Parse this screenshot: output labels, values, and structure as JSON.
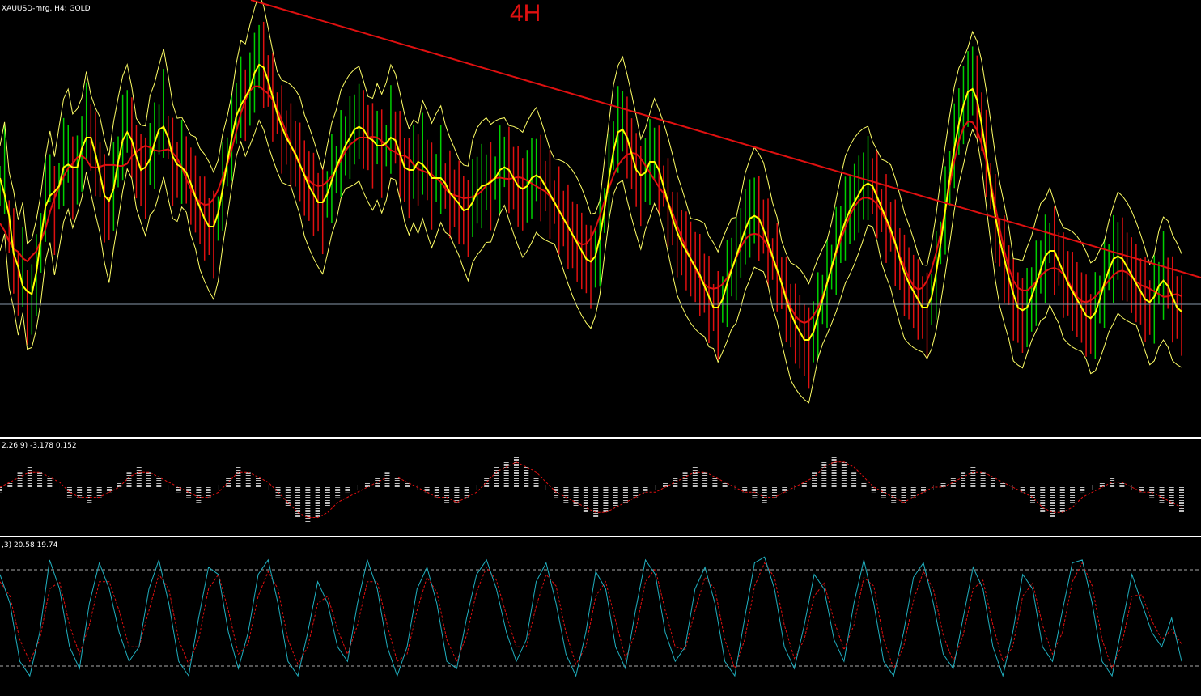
{
  "window": {
    "symbol_label": "XAUUSD-mrg, H4:  GOLD",
    "timeframe_annotation": "4H"
  },
  "macd_panel": {
    "label": "2,26,9) -3.178 0.152"
  },
  "stoch_panel": {
    "label": ",3) 20.58 19.74"
  },
  "colors": {
    "background": "#000000",
    "bull_candle": "#00d000",
    "bear_candle": "#e01010",
    "fast_ma": "#ffff00",
    "slow_ma": "#e01010",
    "bands": "#ffff66",
    "trendline": "#e01010",
    "hline": "#8899aa",
    "macd_hist": "#c0c0c0",
    "macd_signal": "#e01010",
    "stoch_main": "#20b0c0",
    "stoch_signal": "#e01010",
    "separator": "#ffffff"
  },
  "chart_data": [
    {
      "type": "line",
      "panel": "price",
      "series": [
        {
          "values": [
            58,
            62,
            48,
            42,
            34,
            38,
            28,
            30,
            36,
            44,
            55,
            60,
            52,
            58,
            64,
            66,
            60,
            62,
            66,
            74,
            70,
            66,
            62,
            55,
            50,
            58,
            64,
            70,
            74,
            70,
            64,
            62,
            60,
            66,
            68,
            72,
            76,
            70,
            64,
            62,
            64,
            62,
            58,
            56,
            52,
            50,
            48,
            46,
            50,
            58,
            64,
            70,
            76,
            80,
            78,
            82,
            86,
            90,
            88,
            84,
            80,
            76,
            72,
            70,
            68,
            66,
            64,
            60,
            58,
            56,
            54,
            52,
            56,
            60,
            62,
            66,
            68,
            70,
            72,
            74,
            72,
            70,
            68,
            70,
            66,
            68,
            72,
            70,
            66,
            62,
            60,
            64,
            62,
            66,
            62,
            58,
            60,
            62,
            58,
            56,
            55,
            54,
            52,
            50,
            55,
            57,
            58,
            59,
            58,
            60,
            62,
            64,
            62,
            60,
            58,
            56,
            58,
            60,
            62,
            60,
            58,
            56,
            54,
            52,
            50,
            48,
            46,
            44,
            42,
            40,
            38,
            40,
            44,
            52,
            60,
            68,
            72,
            74,
            70,
            66,
            62,
            58,
            62,
            64,
            66,
            62,
            58,
            54,
            50,
            46,
            44,
            42,
            40,
            38,
            36,
            34,
            30,
            28,
            26,
            30,
            34,
            38,
            40,
            44,
            48,
            50,
            52,
            50,
            48,
            44,
            40,
            38,
            34,
            30,
            26,
            24,
            22,
            20,
            18,
            22,
            26,
            30,
            34,
            38,
            42,
            46,
            50,
            52,
            54,
            56,
            58,
            60,
            58,
            56,
            52,
            50,
            48,
            44,
            40,
            36,
            34,
            32,
            30,
            28,
            26,
            30,
            36,
            44,
            52,
            60,
            68,
            74,
            78,
            82,
            84,
            80,
            74,
            66,
            58,
            50,
            44,
            40,
            36,
            30,
            28,
            26,
            28,
            30,
            34,
            38,
            40,
            44,
            42,
            40,
            36,
            34,
            32,
            30,
            28,
            26,
            24,
            26,
            30,
            34,
            38,
            40,
            42,
            40,
            38,
            36,
            34,
            32,
            30,
            28,
            30,
            34,
            36,
            34,
            30,
            28,
            26
          ]
        }
      ],
      "ylim": [
        0,
        100
      ]
    },
    {
      "type": "bar",
      "panel": "macd",
      "series": [
        {
          "values": [
            -1,
            1,
            3,
            4,
            3,
            2,
            0,
            -2,
            -2,
            -3,
            -2,
            -1,
            1,
            3,
            4,
            3,
            2,
            0,
            -1,
            -2,
            -3,
            -2,
            0,
            2,
            4,
            3,
            2,
            0,
            -2,
            -4,
            -6,
            -7,
            -6,
            -4,
            -2,
            -1,
            0,
            1,
            2,
            3,
            2,
            1,
            0,
            -1,
            -2,
            -3,
            -3,
            -2,
            0,
            2,
            4,
            5,
            6,
            4,
            2,
            0,
            -2,
            -3,
            -4,
            -5,
            -6,
            -5,
            -4,
            -3,
            -2,
            -1,
            0,
            1,
            2,
            3,
            4,
            3,
            2,
            1,
            0,
            -1,
            -2,
            -3,
            -2,
            -1,
            0,
            1,
            3,
            5,
            6,
            5,
            3,
            1,
            -1,
            -2,
            -3,
            -3,
            -2,
            -1,
            0,
            1,
            2,
            3,
            4,
            3,
            2,
            1,
            0,
            -1,
            -3,
            -5,
            -6,
            -5,
            -3,
            -1,
            0,
            1,
            2,
            1,
            0,
            -1,
            -2,
            -3,
            -4,
            -5
          ]
        },
        {
          "values": [
            0,
            1,
            2,
            3,
            3,
            2,
            1,
            -1,
            -2,
            -2,
            -2,
            -1,
            0,
            2,
            3,
            3,
            2,
            1,
            0,
            -1,
            -2,
            -2,
            -1,
            1,
            3,
            3,
            2,
            1,
            -1,
            -3,
            -5,
            -6,
            -6,
            -5,
            -3,
            -2,
            -1,
            0,
            1,
            2,
            2,
            1,
            0,
            -1,
            -2,
            -2,
            -3,
            -2,
            -1,
            1,
            3,
            4,
            5,
            4,
            3,
            1,
            -1,
            -2,
            -3,
            -4,
            -5,
            -5,
            -4,
            -3,
            -2,
            -1,
            -1,
            0,
            1,
            2,
            3,
            3,
            2,
            1,
            0,
            -1,
            -1,
            -2,
            -2,
            -1,
            0,
            1,
            2,
            4,
            5,
            5,
            4,
            2,
            0,
            -1,
            -2,
            -3,
            -2,
            -1,
            0,
            0,
            1,
            2,
            3,
            3,
            2,
            1,
            0,
            -1,
            -2,
            -4,
            -5,
            -5,
            -4,
            -2,
            -1,
            0,
            1,
            1,
            0,
            -1,
            -1,
            -2,
            -3,
            -4
          ]
        }
      ],
      "ylim": [
        -8,
        8
      ]
    },
    {
      "type": "line",
      "panel": "stochastic",
      "series": [
        {
          "values": [
            80,
            60,
            20,
            10,
            40,
            90,
            70,
            30,
            15,
            60,
            88,
            70,
            40,
            20,
            30,
            70,
            90,
            60,
            20,
            10,
            50,
            85,
            80,
            40,
            15,
            40,
            80,
            90,
            60,
            20,
            10,
            40,
            75,
            60,
            30,
            20,
            60,
            90,
            70,
            30,
            10,
            30,
            70,
            85,
            60,
            20,
            15,
            50,
            80,
            90,
            70,
            40,
            20,
            35,
            75,
            88,
            60,
            25,
            10,
            40,
            82,
            70,
            30,
            15,
            55,
            90,
            80,
            40,
            20,
            30,
            70,
            85,
            60,
            20,
            10,
            50,
            88,
            92,
            70,
            30,
            15,
            45,
            80,
            70,
            35,
            20,
            60,
            90,
            60,
            20,
            10,
            40,
            78,
            88,
            60,
            25,
            15,
            50,
            85,
            70,
            30,
            10,
            40,
            80,
            70,
            30,
            20,
            55,
            88,
            90,
            60,
            20,
            10,
            45,
            80,
            60,
            40,
            30,
            50,
            20
          ]
        },
        {
          "values": [
            75,
            65,
            35,
            20,
            35,
            70,
            75,
            45,
            25,
            45,
            75,
            75,
            55,
            30,
            30,
            55,
            80,
            70,
            35,
            18,
            35,
            70,
            80,
            55,
            25,
            32,
            65,
            82,
            70,
            35,
            18,
            30,
            60,
            65,
            42,
            25,
            45,
            75,
            75,
            45,
            20,
            25,
            55,
            78,
            68,
            35,
            20,
            38,
            68,
            85,
            76,
            52,
            30,
            30,
            58,
            80,
            72,
            40,
            18,
            30,
            65,
            75,
            48,
            22,
            40,
            75,
            84,
            55,
            30,
            28,
            55,
            78,
            70,
            35,
            15,
            35,
            72,
            88,
            78,
            45,
            22,
            35,
            65,
            74,
            48,
            28,
            45,
            78,
            72,
            35,
            15,
            30,
            62,
            82,
            70,
            38,
            20,
            38,
            70,
            76,
            45,
            20,
            30,
            65,
            74,
            45,
            25,
            40,
            75,
            88,
            72,
            35,
            15,
            32,
            65,
            66,
            48,
            35,
            42,
            32
          ]
        }
      ],
      "ylim": [
        0,
        100
      ]
    }
  ]
}
